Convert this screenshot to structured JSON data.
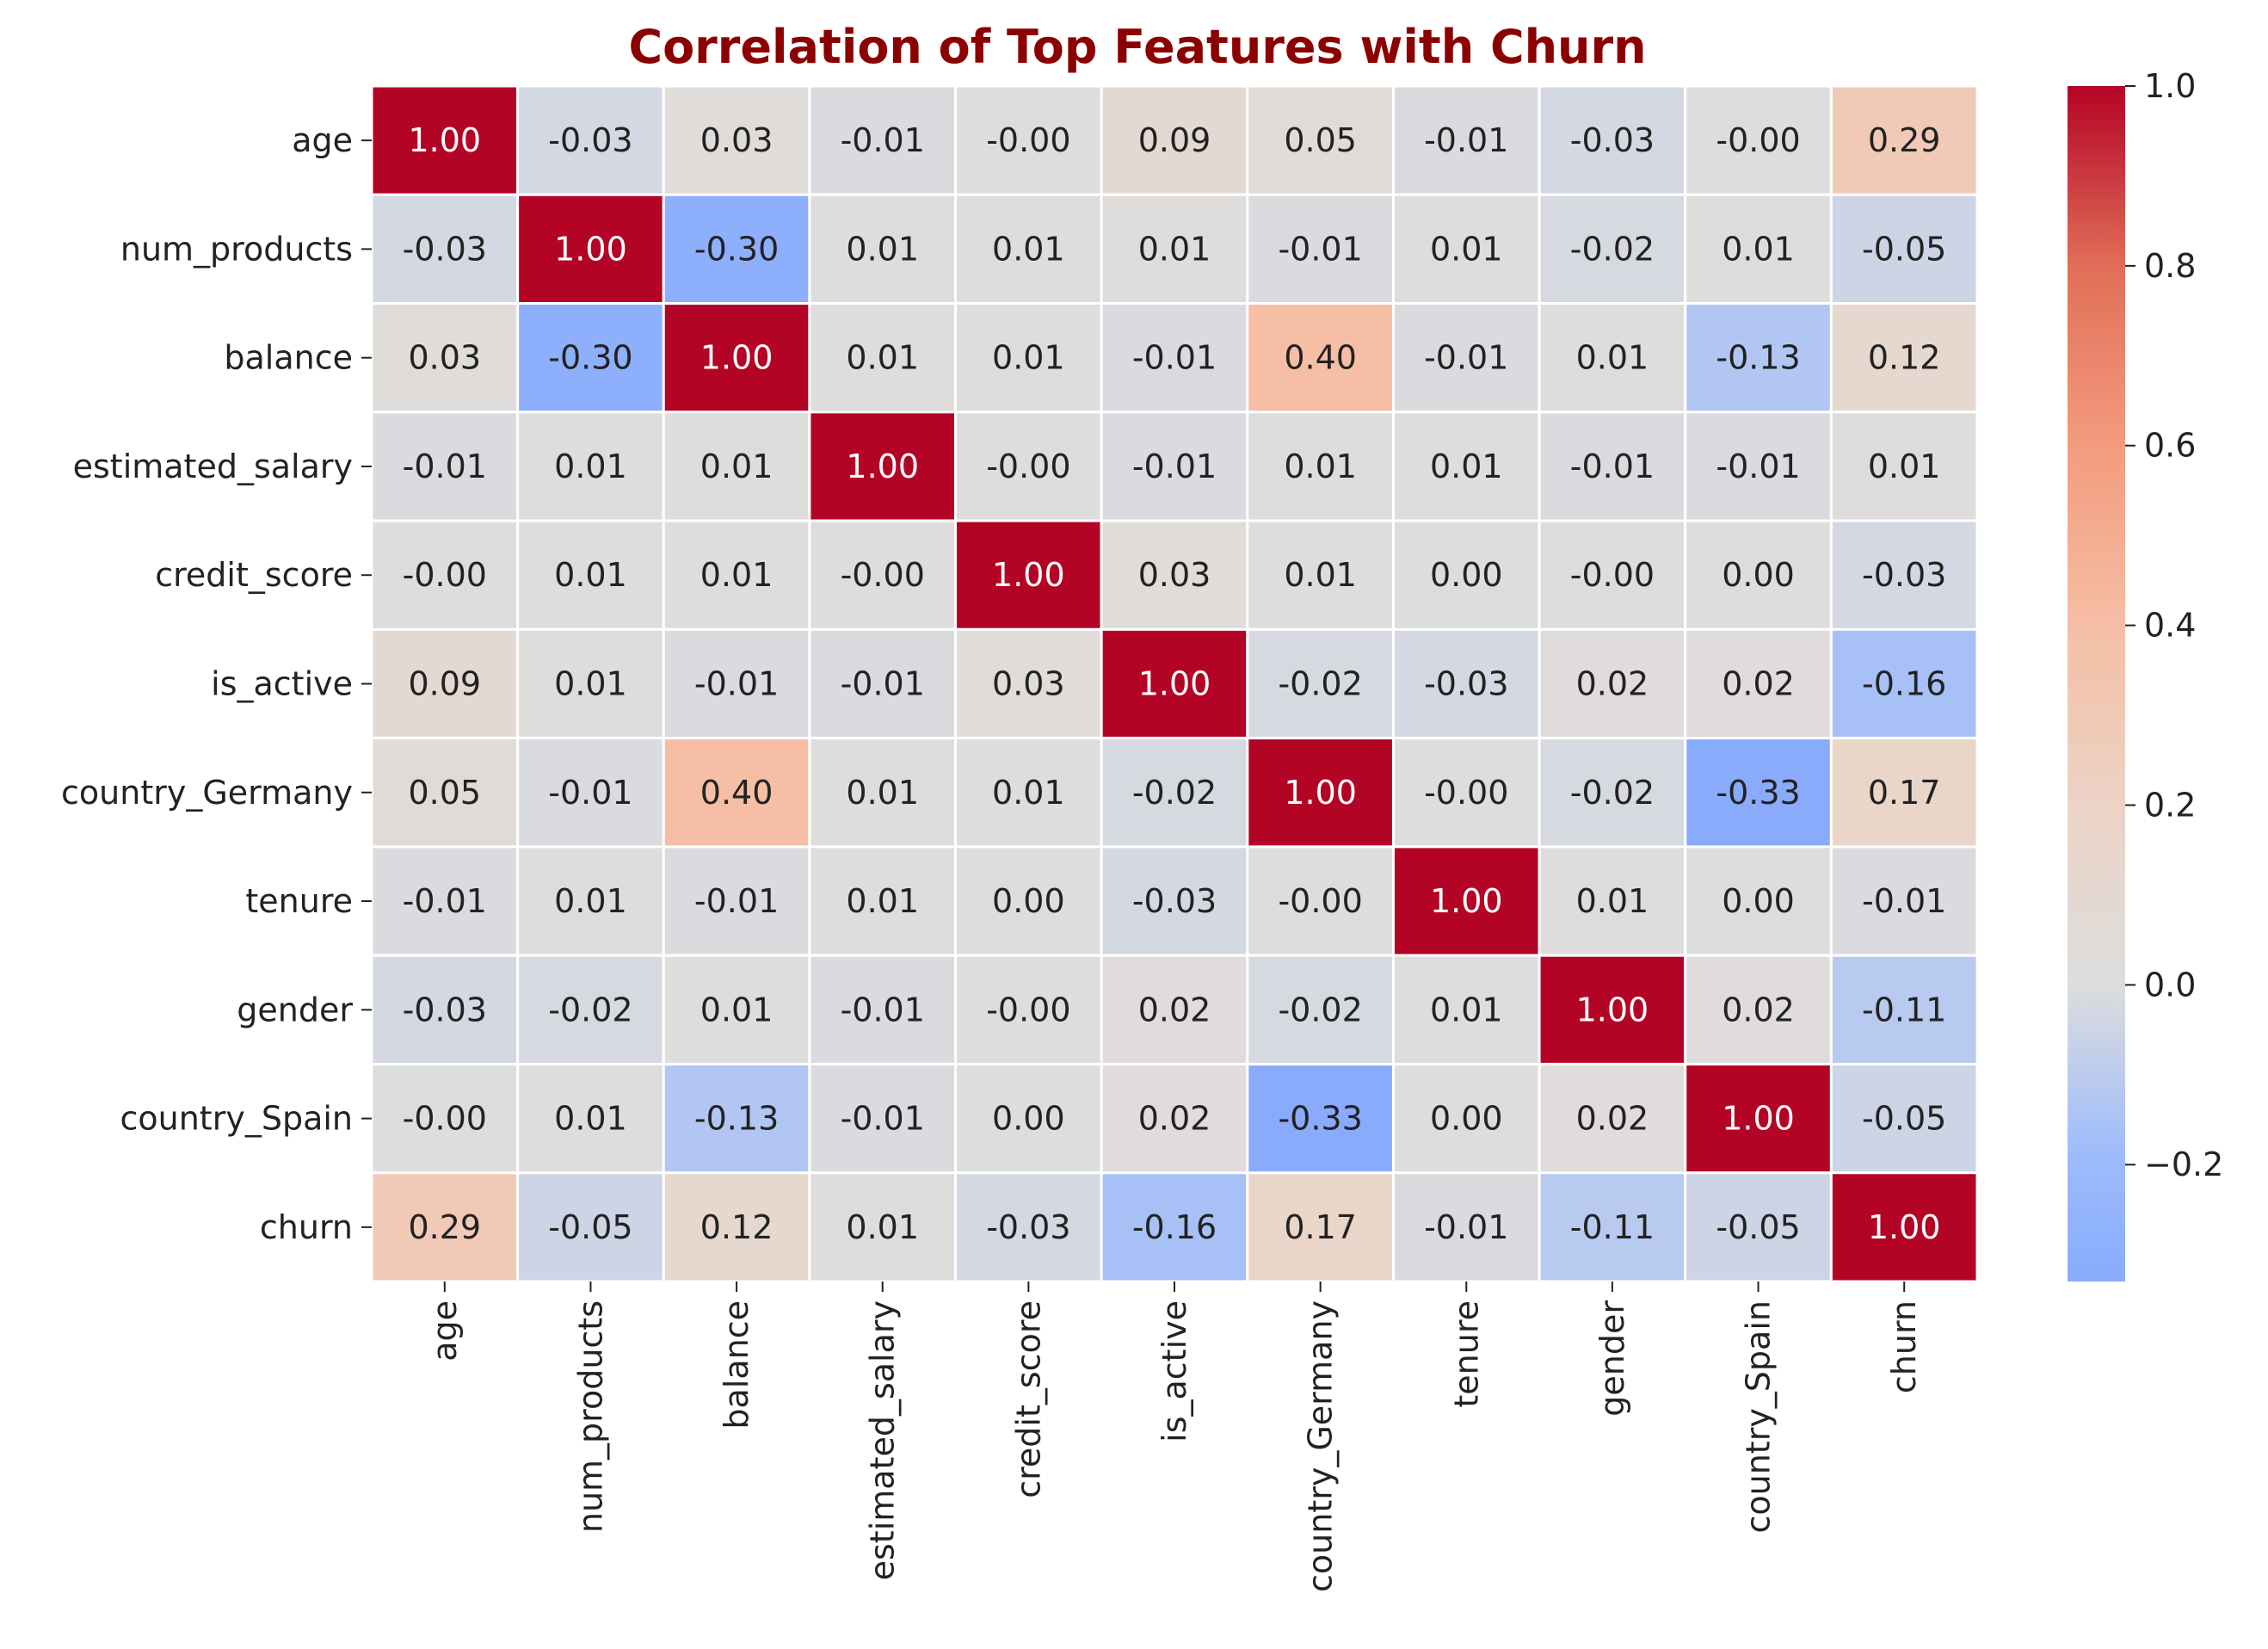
{
  "chart_data": {
    "type": "heatmap",
    "title": "Correlation of Top Features with Churn",
    "xlabel": "",
    "ylabel": "",
    "row_labels": [
      "age",
      "num_products",
      "balance",
      "estimated_salary",
      "credit_score",
      "is_active",
      "country_Germany",
      "tenure",
      "gender",
      "country_Spain",
      "churn"
    ],
    "col_labels": [
      "age",
      "num_products",
      "balance",
      "estimated_salary",
      "credit_score",
      "is_active",
      "country_Germany",
      "tenure",
      "gender",
      "country_Spain",
      "churn"
    ],
    "values": [
      [
        1.0,
        -0.03,
        0.03,
        -0.01,
        -0.0,
        0.09,
        0.05,
        -0.01,
        -0.03,
        -0.0,
        0.29
      ],
      [
        -0.03,
        1.0,
        -0.3,
        0.01,
        0.01,
        0.01,
        -0.01,
        0.01,
        -0.02,
        0.01,
        -0.05
      ],
      [
        0.03,
        -0.3,
        1.0,
        0.01,
        0.01,
        -0.01,
        0.4,
        -0.01,
        0.01,
        -0.13,
        0.12
      ],
      [
        -0.01,
        0.01,
        0.01,
        1.0,
        -0.0,
        -0.01,
        0.01,
        0.01,
        -0.01,
        -0.01,
        0.01
      ],
      [
        -0.0,
        0.01,
        0.01,
        -0.0,
        1.0,
        0.03,
        0.01,
        0.0,
        -0.0,
        0.0,
        -0.03
      ],
      [
        0.09,
        0.01,
        -0.01,
        -0.01,
        0.03,
        1.0,
        -0.02,
        -0.03,
        0.02,
        0.02,
        -0.16
      ],
      [
        0.05,
        -0.01,
        0.4,
        0.01,
        0.01,
        -0.02,
        1.0,
        -0.0,
        -0.02,
        -0.33,
        0.17
      ],
      [
        -0.01,
        0.01,
        -0.01,
        0.01,
        0.0,
        -0.03,
        -0.0,
        1.0,
        0.01,
        0.0,
        -0.01
      ],
      [
        -0.03,
        -0.02,
        0.01,
        -0.01,
        -0.0,
        0.02,
        -0.02,
        0.01,
        1.0,
        0.02,
        -0.11
      ],
      [
        -0.0,
        0.01,
        -0.13,
        -0.01,
        0.0,
        0.02,
        -0.33,
        0.0,
        0.02,
        1.0,
        -0.05
      ],
      [
        0.29,
        -0.05,
        0.12,
        0.01,
        -0.03,
        -0.16,
        0.17,
        -0.01,
        -0.11,
        -0.05,
        1.0
      ]
    ],
    "value_format": "2 decimals",
    "colormap": "coolwarm",
    "center": 0.0,
    "vmin": -0.33,
    "vmax": 1.0,
    "colorbar_ticks": [
      1.0,
      0.8,
      0.6,
      0.4,
      0.2,
      0.0,
      -0.2
    ],
    "colorbar_tick_labels": [
      "1.0",
      "0.8",
      "0.6",
      "0.4",
      "0.2",
      "0.0",
      "−0.2"
    ],
    "grid_line_color": "#ffffff",
    "title_color": "#8b0000",
    "legend": "colorbar-right"
  }
}
